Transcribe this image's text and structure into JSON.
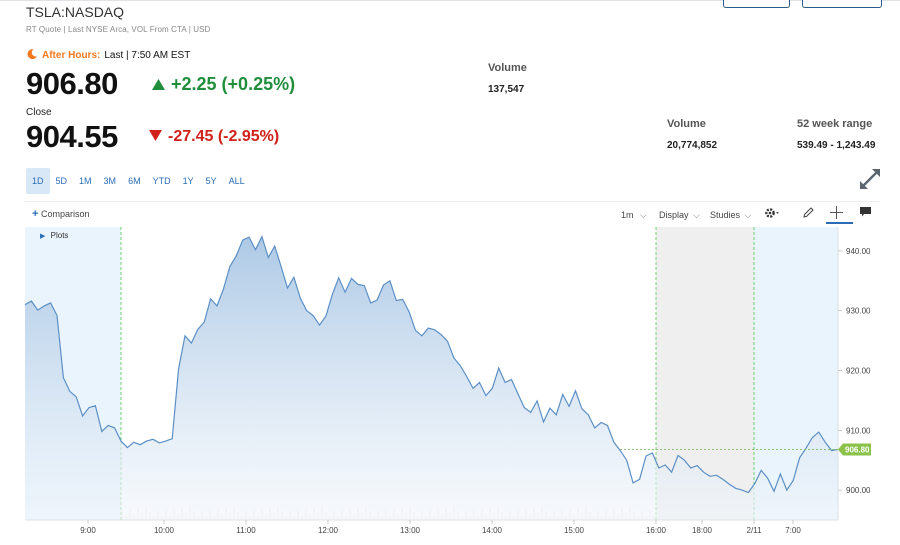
{
  "header": {
    "symbol": "TSLA:NASDAQ",
    "subtitle": "RT Quote | Last NYSE Arca, VOL From CTA | USD"
  },
  "after_hours": {
    "label": "After Hours:",
    "time": "Last | 7:50 AM EST",
    "price": "906.80",
    "change": "+2.25 (+0.25%)",
    "volume_label": "Volume",
    "volume": "137,547"
  },
  "close": {
    "label": "Close",
    "price": "904.55",
    "change": "-27.45 (-2.95%)",
    "volume_label": "Volume",
    "volume": "20,774,852",
    "range_label": "52 week range",
    "range": "539.49 - 1,243.49"
  },
  "ranges": [
    "1D",
    "5D",
    "1M",
    "3M",
    "6M",
    "YTD",
    "1Y",
    "5Y",
    "ALL"
  ],
  "toolbar": {
    "comparison": "Comparison",
    "interval": "1m",
    "display": "Display",
    "studies": "Studies",
    "plots": "Plots"
  },
  "colors": {
    "line": "#5b8fc6",
    "area_top": "#a9c6e4",
    "area_bottom": "#f1f6fb",
    "extended_hours": "#eaf4fc",
    "closed_hours": "#efefef",
    "session_divider": "#4fc84f",
    "price_tag": "#8bc34a",
    "up": "#208e3b",
    "down": "#d0211b",
    "after_hours": "#f2791f"
  },
  "chart_data": {
    "type": "area",
    "ylim": [
      895,
      944
    ],
    "y_ticks": [
      "940.00",
      "930.00",
      "920.00",
      "910.00",
      "900.00"
    ],
    "x_ticks": [
      "9:00",
      "10:00",
      "11:00",
      "12:00",
      "13:00",
      "14:00",
      "15:00",
      "16:00",
      "18:00",
      "2/11",
      "7:00"
    ],
    "current_price_label": "906.80",
    "series": [
      {
        "values": [
          931.0,
          931.6,
          930.1,
          930.8,
          931.3,
          929.2,
          918.8,
          916.5,
          915.6,
          912.4,
          913.8,
          914.1,
          909.8,
          910.8,
          910.4,
          908.2,
          907.1,
          908.0,
          907.6,
          908.2,
          908.5,
          907.9,
          908.2,
          908.6,
          920.3,
          925.8,
          924.6,
          926.9,
          928.1,
          932.0,
          930.8,
          933.6,
          937.4,
          939.2,
          941.8,
          942.3,
          940.2,
          942.4,
          938.9,
          940.8,
          937.4,
          933.8,
          935.6,
          932.1,
          930.0,
          929.2,
          927.6,
          929.1,
          932.7,
          935.5,
          933.1,
          935.4,
          934.4,
          934.2,
          931.3,
          931.8,
          934.3,
          935.0,
          931.7,
          931.9,
          929.8,
          926.7,
          925.8,
          927.1,
          926.8,
          926.0,
          924.9,
          922.1,
          920.8,
          919.0,
          917.0,
          918.0,
          915.8,
          917.0,
          920.4,
          918.0,
          918.5,
          916.1,
          913.8,
          913.0,
          914.9,
          911.4,
          913.7,
          912.6,
          916.0,
          914.0,
          916.6,
          913.6,
          912.6,
          910.4,
          911.3,
          910.8,
          908.0,
          906.6,
          905.0,
          901.2,
          901.8,
          905.7,
          906.2,
          903.7,
          904.2,
          903.0,
          905.8,
          905.0,
          903.7,
          904.1,
          903.0,
          902.3,
          902.5,
          901.8,
          901.0,
          900.3,
          900.0,
          899.6,
          901.1,
          903.3,
          902.0,
          899.8,
          902.7,
          900.0,
          901.6,
          905.4,
          907.0,
          908.8,
          909.7,
          908.0,
          906.6,
          906.8
        ]
      }
    ]
  }
}
